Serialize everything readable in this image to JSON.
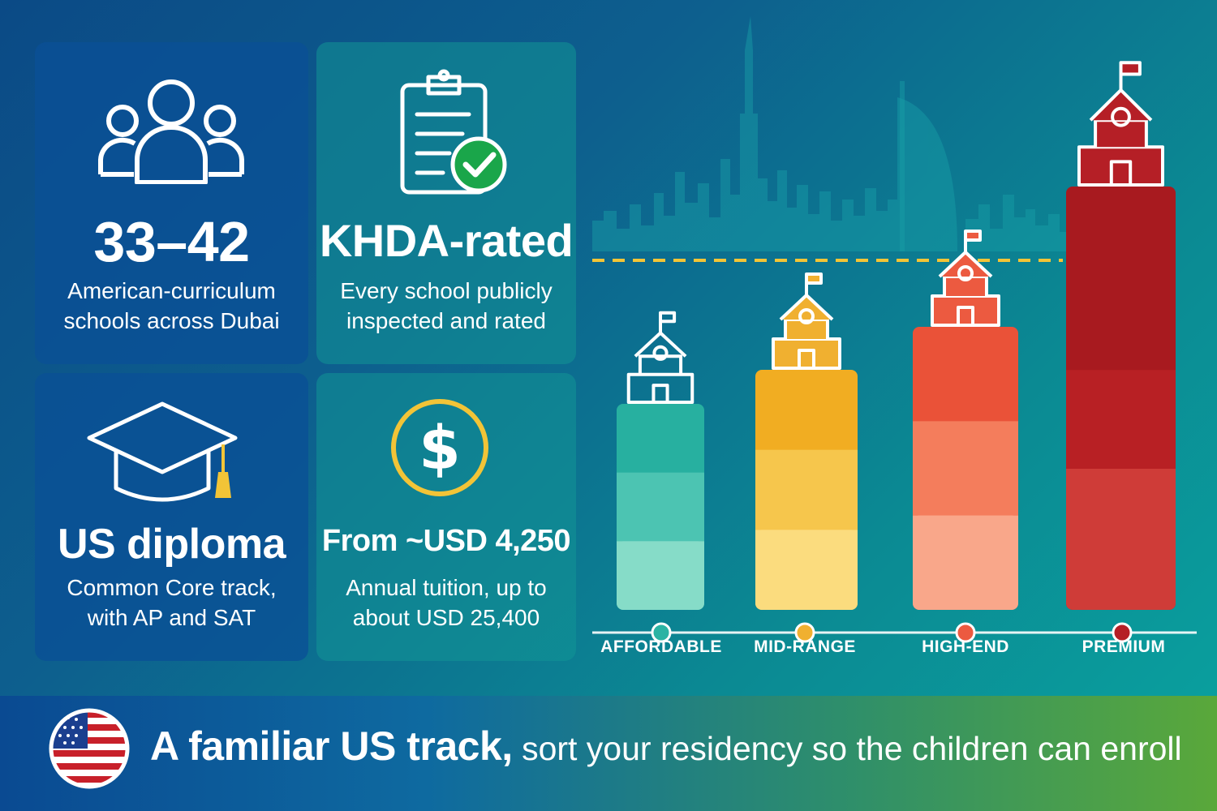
{
  "cards": {
    "schools": {
      "figure": "33–42",
      "text_line1": "American-curriculum",
      "text_line2": "schools across Dubai",
      "icon": "people-icon"
    },
    "khda": {
      "figure": "KHDA-rated",
      "text_line1": "Every school publicly",
      "text_line2": "inspected and rated",
      "icon": "clipboard-check-icon"
    },
    "diploma": {
      "figure": "US diploma",
      "text_line1": "Common Core track,",
      "text_line2": "with AP and SAT",
      "icon": "graduation-cap-icon"
    },
    "tuition": {
      "figure": "From ~USD 4,250",
      "text_line1": "Annual tuition, up to",
      "text_line2": "about USD 25,400",
      "icon": "dollar-coin-icon"
    }
  },
  "tiers": {
    "labels": [
      "AFFORDABLE",
      "MID-RANGE",
      "HIGH-END",
      "PREMIUM"
    ],
    "colors": [
      "#2bb3a3",
      "#f0b030",
      "#ec5a40",
      "#b51f26"
    ],
    "icon": "school-building-icon",
    "background": "dubai-skyline-icon"
  },
  "banner": {
    "strong": "A familiar US track,",
    "rest": " sort your residency so the children can enroll",
    "icon": "us-flag-icon"
  }
}
